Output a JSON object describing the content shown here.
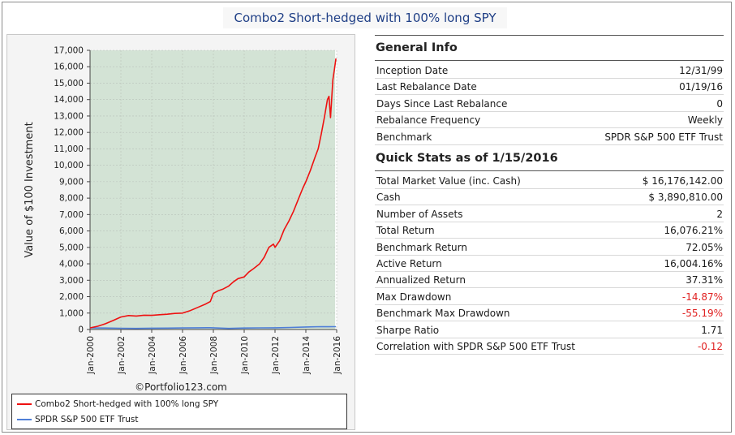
{
  "title": "Combo2 Short-hedged with 100% long SPY",
  "credit": "©Portfolio123.com",
  "colors": {
    "plot_bg": "#d3e3d5",
    "portfolio_line": "#ee1111",
    "benchmark_line": "#4f7fd8",
    "negative_value": "#e02020",
    "title_text": "#1f3f86"
  },
  "chart_data": {
    "type": "line",
    "title": "",
    "xlabel": "",
    "ylabel": "Value of $100 Investment",
    "ylim": [
      0,
      17000
    ],
    "yticks": [
      0,
      1000,
      2000,
      3000,
      4000,
      5000,
      6000,
      7000,
      8000,
      9000,
      10000,
      11000,
      12000,
      13000,
      14000,
      15000,
      16000,
      17000
    ],
    "ytick_labels": [
      "0",
      "1,000",
      "2,000",
      "3,000",
      "4,000",
      "5,000",
      "6,000",
      "7,000",
      "8,000",
      "9,000",
      "10,000",
      "11,000",
      "12,000",
      "13,000",
      "14,000",
      "15,000",
      "16,000",
      "17,000"
    ],
    "xlim": [
      2000.0,
      2016.0
    ],
    "xticks": [
      2000,
      2002,
      2004,
      2006,
      2008,
      2010,
      2012,
      2014,
      2016
    ],
    "xtick_labels": [
      "Jan-2000",
      "Jan-2002",
      "Jan-2004",
      "Jan-2006",
      "Jan-2008",
      "Jan-2010",
      "Jan-2012",
      "Jan-2014",
      "Jan-2016"
    ],
    "shaded_period": [
      2000.0,
      2015.9
    ],
    "grid": true,
    "legend_position": "bottom",
    "series": [
      {
        "name": "Combo2 Short-hedged with 100% long SPY",
        "x": [
          2000.0,
          2000.5,
          2001.0,
          2001.5,
          2002.0,
          2002.5,
          2003.0,
          2003.5,
          2004.0,
          2004.5,
          2005.0,
          2005.5,
          2006.0,
          2006.5,
          2007.0,
          2007.5,
          2007.8,
          2008.0,
          2008.3,
          2008.6,
          2009.0,
          2009.3,
          2009.6,
          2010.0,
          2010.3,
          2010.6,
          2011.0,
          2011.3,
          2011.6,
          2011.9,
          2012.0,
          2012.3,
          2012.6,
          2012.9,
          2013.2,
          2013.5,
          2013.8,
          2014.0,
          2014.3,
          2014.6,
          2014.8,
          2015.0,
          2015.2,
          2015.4,
          2015.5,
          2015.6,
          2015.75,
          2015.85,
          2015.95
        ],
        "values": [
          100,
          200,
          350,
          550,
          760,
          850,
          820,
          870,
          860,
          900,
          930,
          980,
          1000,
          1150,
          1350,
          1550,
          1700,
          2200,
          2350,
          2450,
          2650,
          2900,
          3100,
          3200,
          3500,
          3700,
          4000,
          4400,
          5000,
          5200,
          5000,
          5400,
          6100,
          6600,
          7200,
          7900,
          8600,
          9000,
          9700,
          10500,
          11000,
          11900,
          12900,
          14000,
          14200,
          12900,
          15200,
          15800,
          16500
        ]
      },
      {
        "name": "SPDR S&P 500 ETF Trust",
        "x": [
          2000.0,
          2001.0,
          2002.0,
          2003.0,
          2004.0,
          2005.0,
          2006.0,
          2007.0,
          2007.8,
          2009.0,
          2010.0,
          2011.0,
          2012.0,
          2013.0,
          2014.0,
          2015.0,
          2015.5,
          2015.95
        ],
        "values": [
          100,
          88,
          75,
          62,
          78,
          85,
          93,
          103,
          110,
          65,
          88,
          100,
          105,
          125,
          152,
          172,
          170,
          175
        ]
      }
    ]
  },
  "general_info": {
    "heading": "General Info",
    "rows": [
      {
        "label": "Inception Date",
        "value": "12/31/99"
      },
      {
        "label": "Last Rebalance Date",
        "value": "01/19/16"
      },
      {
        "label": "Days Since Last Rebalance",
        "value": "0"
      },
      {
        "label": "Rebalance Frequency",
        "value": "Weekly"
      },
      {
        "label": "Benchmark",
        "value": "SPDR S&P 500 ETF Trust"
      }
    ]
  },
  "quick_stats": {
    "heading": "Quick Stats as of 1/15/2016",
    "rows": [
      {
        "label": "Total Market Value (inc. Cash)",
        "value": "$ 16,176,142.00"
      },
      {
        "label": "Cash",
        "value": "$ 3,890,810.00"
      },
      {
        "label": "Number of Assets",
        "value": "2"
      },
      {
        "label": "Total Return",
        "value": "16,076.21%"
      },
      {
        "label": "Benchmark Return",
        "value": "72.05%"
      },
      {
        "label": "Active Return",
        "value": "16,004.16%"
      },
      {
        "label": "Annualized Return",
        "value": "37.31%"
      },
      {
        "label": "Max Drawdown",
        "value": "-14.87%"
      },
      {
        "label": "Benchmark Max Drawdown",
        "value": "-55.19%"
      },
      {
        "label": "Sharpe Ratio",
        "value": "1.71"
      },
      {
        "label": "Correlation with SPDR S&P 500 ETF Trust",
        "value": "-0.12"
      }
    ]
  }
}
